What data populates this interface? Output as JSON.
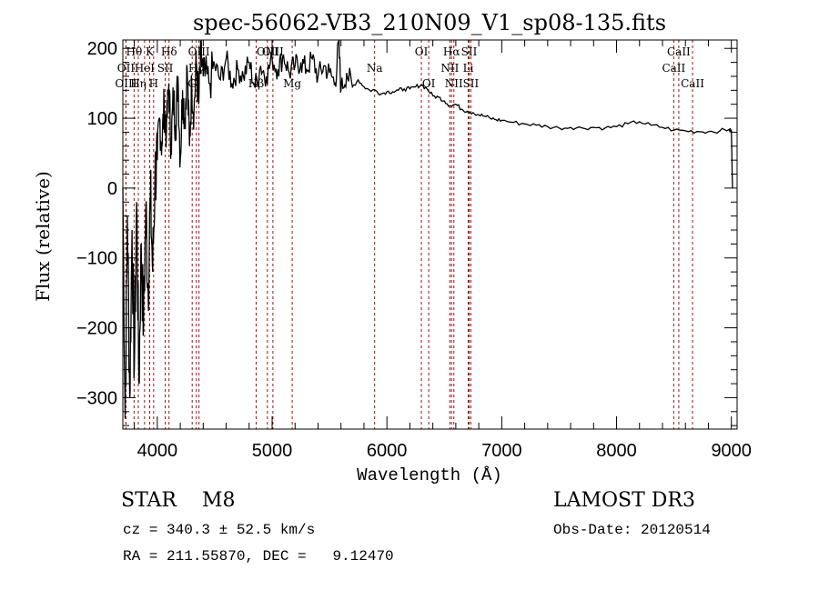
{
  "chart_data": {
    "type": "line",
    "title": "spec-56062-VB3_210N09_V1_sp08-135.fits",
    "xlabel": "Wavelength (Å)",
    "ylabel": "Flux (relative)",
    "xlim": [
      3700,
      9050
    ],
    "ylim": [
      -345,
      212
    ],
    "xticks": [
      4000,
      5000,
      6000,
      7000,
      8000,
      9000
    ],
    "xtick_labels": [
      "4000",
      "5000",
      "6000",
      "7000",
      "8000",
      "9000"
    ],
    "yticks": [
      -300,
      -200,
      -100,
      0,
      100,
      200
    ],
    "ytick_labels": [
      "−300",
      "−200",
      "−100",
      "0",
      "100",
      "200"
    ],
    "grid": false,
    "series": [
      {
        "name": "spectrum",
        "color": "#000000",
        "x": [
          3700,
          3720,
          3740,
          3760,
          3780,
          3800,
          3820,
          3840,
          3860,
          3880,
          3900,
          3920,
          3940,
          3960,
          3980,
          4000,
          4020,
          4040,
          4060,
          4080,
          4100,
          4120,
          4140,
          4160,
          4180,
          4200,
          4220,
          4240,
          4260,
          4280,
          4300,
          4320,
          4340,
          4360,
          4380,
          4400,
          4450,
          4500,
          4550,
          4600,
          4650,
          4700,
          4750,
          4800,
          4850,
          4900,
          4950,
          5000,
          5050,
          5100,
          5150,
          5200,
          5250,
          5300,
          5350,
          5400,
          5450,
          5500,
          5550,
          5580,
          5600,
          5650,
          5700,
          5750,
          5800,
          5850,
          5900,
          5950,
          6000,
          6050,
          6100,
          6150,
          6200,
          6250,
          6300,
          6350,
          6400,
          6450,
          6500,
          6550,
          6600,
          6650,
          6700,
          6750,
          6800,
          6850,
          6900,
          6950,
          7000,
          7100,
          7200,
          7300,
          7400,
          7500,
          7600,
          7700,
          7800,
          7900,
          8000,
          8100,
          8200,
          8300,
          8400,
          8500,
          8600,
          8700,
          8800,
          8900,
          8980,
          9000,
          9010
        ],
        "y": [
          0,
          -330,
          -40,
          -300,
          -60,
          -260,
          -20,
          -280,
          -80,
          -200,
          -30,
          -150,
          -10,
          -120,
          20,
          40,
          100,
          60,
          120,
          80,
          150,
          60,
          130,
          90,
          160,
          40,
          140,
          100,
          170,
          60,
          150,
          110,
          180,
          120,
          190,
          160,
          150,
          175,
          155,
          185,
          150,
          170,
          160,
          180,
          145,
          175,
          160,
          185,
          170,
          190,
          165,
          175,
          180,
          170,
          185,
          160,
          175,
          165,
          150,
          210,
          140,
          165,
          145,
          155,
          145,
          140,
          140,
          135,
          138,
          138,
          140,
          142,
          142,
          145,
          148,
          142,
          132,
          130,
          125,
          118,
          120,
          113,
          110,
          108,
          105,
          103,
          100,
          98,
          97,
          94,
          92,
          90,
          88,
          86,
          87,
          86,
          87,
          86,
          88,
          92,
          95,
          90,
          87,
          83,
          82,
          81,
          81,
          82,
          84,
          82,
          0
        ]
      }
    ],
    "line_markers": [
      {
        "label": "Hθ",
        "wavelength": 3798,
        "row": 1
      },
      {
        "label": "OII",
        "wavelength": 3727,
        "row": 2
      },
      {
        "label": "OIII",
        "wavelength": 3727,
        "row": 3
      },
      {
        "label": "HeI",
        "wavelength": 3889,
        "row": 2
      },
      {
        "label": "Hη",
        "wavelength": 3835,
        "row": 3
      },
      {
        "label": "K",
        "wavelength": 3934,
        "row": 1
      },
      {
        "label": "H",
        "wavelength": 3968,
        "row": 3
      },
      {
        "label": "SII",
        "wavelength": 4069,
        "row": 2
      },
      {
        "label": "Hδ",
        "wavelength": 4102,
        "row": 1
      },
      {
        "label": "OIII",
        "wavelength": 4363,
        "row": 1
      },
      {
        "label": "Hγ",
        "wavelength": 4340,
        "row": 2
      },
      {
        "label": "G",
        "wavelength": 4304,
        "row": 3
      },
      {
        "label": "Hβ",
        "wavelength": 4861,
        "row": 3
      },
      {
        "label": "OIII",
        "wavelength": 4959,
        "row": 1
      },
      {
        "label": "OIII",
        "wavelength": 5007,
        "row": 1
      },
      {
        "label": "Mg",
        "wavelength": 5175,
        "row": 3
      },
      {
        "label": "Na",
        "wavelength": 5893,
        "row": 2
      },
      {
        "label": "OI",
        "wavelength": 6300,
        "row": 1
      },
      {
        "label": "OI",
        "wavelength": 6364,
        "row": 3
      },
      {
        "label": "Hα",
        "wavelength": 6563,
        "row": 1
      },
      {
        "label": "NII",
        "wavelength": 6548,
        "row": 2
      },
      {
        "label": "NII",
        "wavelength": 6583,
        "row": 3
      },
      {
        "label": "Li",
        "wavelength": 6708,
        "row": 2
      },
      {
        "label": "SII",
        "wavelength": 6716,
        "row": 1
      },
      {
        "label": "SII",
        "wavelength": 6731,
        "row": 3
      },
      {
        "label": "CaII",
        "wavelength": 8542,
        "row": 1
      },
      {
        "label": "CaII",
        "wavelength": 8498,
        "row": 2
      },
      {
        "label": "CaII",
        "wavelength": 8662,
        "row": 3
      }
    ],
    "marker_color": "#a01010"
  },
  "info": {
    "class_label": "STAR    M8",
    "survey": "LAMOST DR3",
    "cz": "cz = 340.3 ± 52.5 km/s",
    "obs_date": "Obs-Date: 20120514",
    "radec": "RA = 211.55870, DEC =   9.12470"
  }
}
